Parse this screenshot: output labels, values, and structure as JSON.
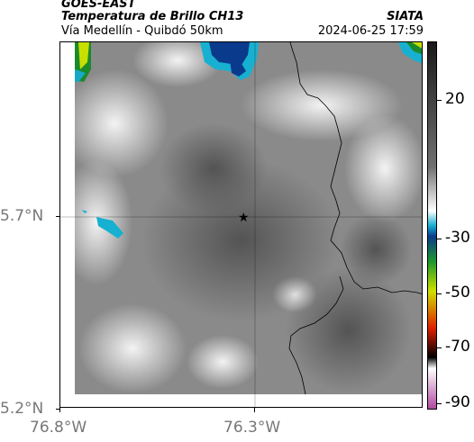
{
  "header": {
    "satellite": "GOES-EAST",
    "product": "Temperatura de Brillo CH13",
    "road": "Vía Medellín - Quibdó 50km",
    "org": "SIATA",
    "datetime": "2024-06-25 17:59"
  },
  "axes": {
    "lat_ticks": [
      "5.7°N",
      "5.2°N"
    ],
    "lon_ticks": [
      "76.8°W",
      "76.3°W"
    ]
  },
  "colorbar": {
    "ticks": [
      "20",
      "-30",
      "-50",
      "-70",
      "-90"
    ],
    "stops": [
      "#1a1a1a",
      "#707070",
      "#ffffff",
      "#1ab0d0",
      "#0a3a8c",
      "#1e9a2a",
      "#d0e000",
      "#e02000",
      "#000000",
      "#ffffff",
      "#b04aa0"
    ]
  },
  "marker": {
    "symbol": "★",
    "label": "station-star-icon"
  }
}
